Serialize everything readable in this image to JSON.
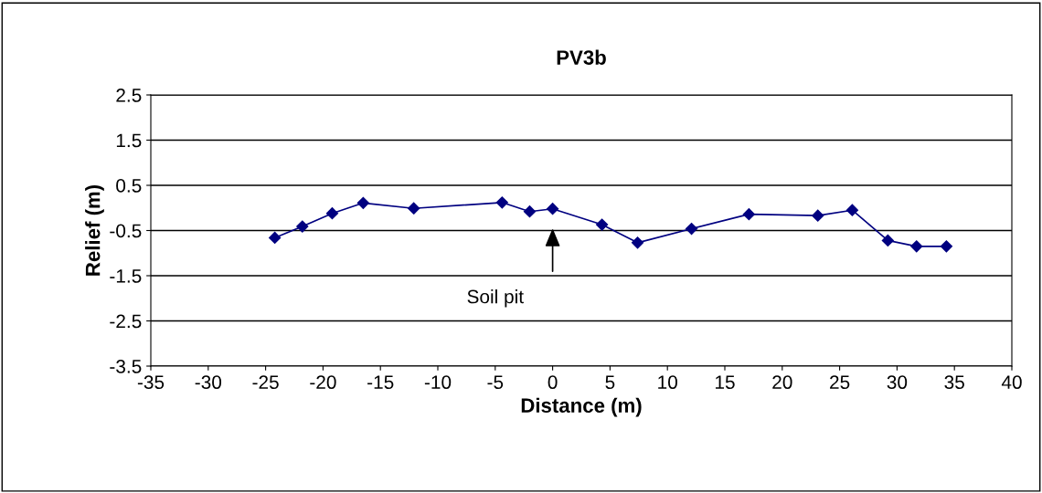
{
  "chart_data": {
    "type": "line",
    "title": "PV3b",
    "xlabel": "Distance (m)",
    "ylabel": "Relief (m)",
    "x": [
      -24.2,
      -21.8,
      -19.2,
      -16.5,
      -12.1,
      -4.4,
      -2.0,
      0.0,
      4.3,
      7.4,
      12.1,
      17.1,
      23.1,
      26.1,
      29.2,
      31.7,
      34.3
    ],
    "series": [
      {
        "color": "#000080",
        "values": [
          -0.66,
          -0.41,
          -0.12,
          0.11,
          -0.01,
          0.12,
          -0.08,
          -0.02,
          -0.37,
          -0.77,
          -0.46,
          -0.14,
          -0.17,
          -0.05,
          -0.72,
          -0.85,
          -0.85
        ]
      }
    ],
    "xlim": [
      -35,
      40
    ],
    "xticks": [
      -35,
      -30,
      -25,
      -20,
      -15,
      -10,
      -5,
      0,
      5,
      10,
      15,
      20,
      25,
      30,
      35,
      40
    ],
    "ylim": [
      -3.5,
      2.5
    ],
    "yticks": [
      -3.5,
      -2.5,
      -1.5,
      -0.5,
      0.5,
      1.5,
      2.5
    ],
    "grid": "y",
    "marker": "diamond",
    "line_style": "solid",
    "legend": false,
    "annotations": [
      "Soil pit"
    ]
  }
}
